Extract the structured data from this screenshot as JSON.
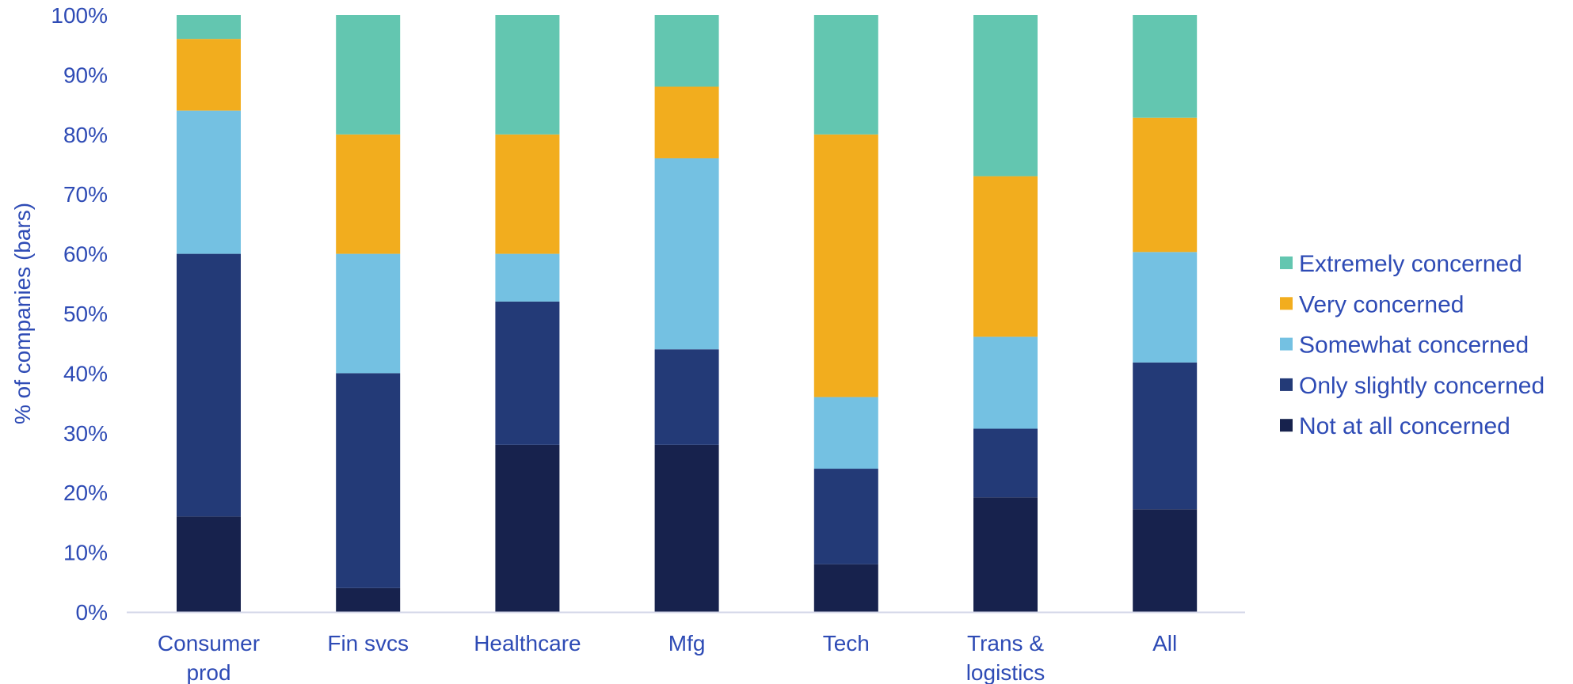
{
  "chart_data": {
    "type": "bar",
    "stacked": true,
    "title": "",
    "xlabel": "",
    "ylabel": "% of companies (bars)",
    "ylim": [
      0,
      100
    ],
    "y_ticks": [
      "0%",
      "10%",
      "20%",
      "30%",
      "40%",
      "50%",
      "60%",
      "70%",
      "80%",
      "90%",
      "100%"
    ],
    "categories": [
      [
        "Consumer",
        "prod"
      ],
      [
        "Fin svcs"
      ],
      [
        "Healthcare"
      ],
      [
        "Mfg"
      ],
      [
        "Tech"
      ],
      [
        "Trans &",
        "logistics"
      ],
      [
        "All"
      ]
    ],
    "series": [
      {
        "name": "Not at all concerned",
        "color": "#17224d",
        "values": [
          16,
          4,
          28,
          28,
          8,
          19.2,
          17.2
        ]
      },
      {
        "name": "Only slightly concerned",
        "color": "#233a77",
        "values": [
          44,
          36,
          24,
          16,
          16,
          11.5,
          24.6
        ]
      },
      {
        "name": "Somewhat concerned",
        "color": "#74c1e2",
        "values": [
          24,
          20,
          8,
          32,
          12,
          15.4,
          18.5
        ]
      },
      {
        "name": "Very concerned",
        "color": "#f2ad1e",
        "values": [
          12,
          20,
          20,
          12,
          44,
          26.9,
          22.5
        ]
      },
      {
        "name": "Extremely concerned",
        "color": "#63c6b0",
        "values": [
          4,
          20,
          20,
          12,
          20,
          27,
          17.2
        ]
      }
    ],
    "legend": {
      "position": "right",
      "order": [
        "Extremely concerned",
        "Very concerned",
        "Somewhat concerned",
        "Only slightly concerned",
        "Not at all concerned"
      ]
    },
    "grid": false,
    "axis_color": "#d3d6e8"
  }
}
